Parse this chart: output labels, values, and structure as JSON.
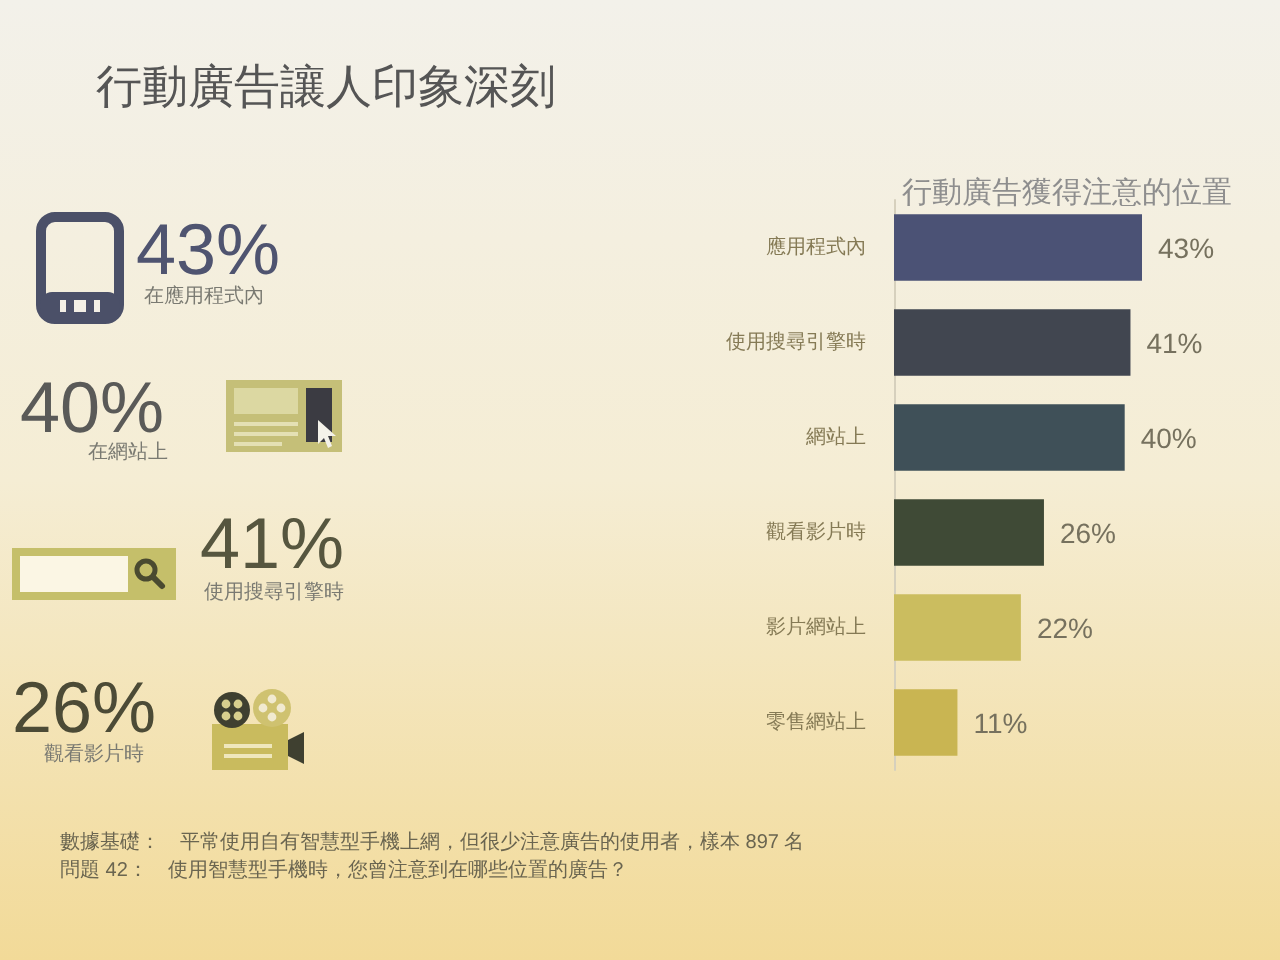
{
  "chart_data": [
    {
      "type": "other",
      "title": "行動廣告讓人印象深刻",
      "annotations": [
        "43%",
        "在應用程式內",
        "40%",
        "在網站上",
        "41%",
        "使用搜尋引擎時",
        "26%",
        "觀看影片時",
        "數據基礎：　平常使用自有智慧型手機上網，但很少注意廣告的使用者，樣本 897 名",
        "問題 42：　使用智慧型手機時，您曾注意到在哪些位置的廣告？"
      ]
    },
    {
      "type": "bar",
      "orientation": "horizontal",
      "title": "行動廣告獲得注意的位置",
      "categories": [
        "應用程式內",
        "使用搜尋引擎時",
        "網站上",
        "觀看影片時",
        "影片網站上",
        "零售網站上"
      ],
      "values": [
        43,
        41,
        40,
        26,
        22,
        11
      ],
      "colors": [
        "#4b5275",
        "#414650",
        "#3f5058",
        "#3f4a36",
        "#cbbd5f",
        "#c9b552"
      ],
      "value_labels": [
        "43%",
        "41%",
        "40%",
        "26%",
        "22%",
        "11%"
      ]
    }
  ]
}
